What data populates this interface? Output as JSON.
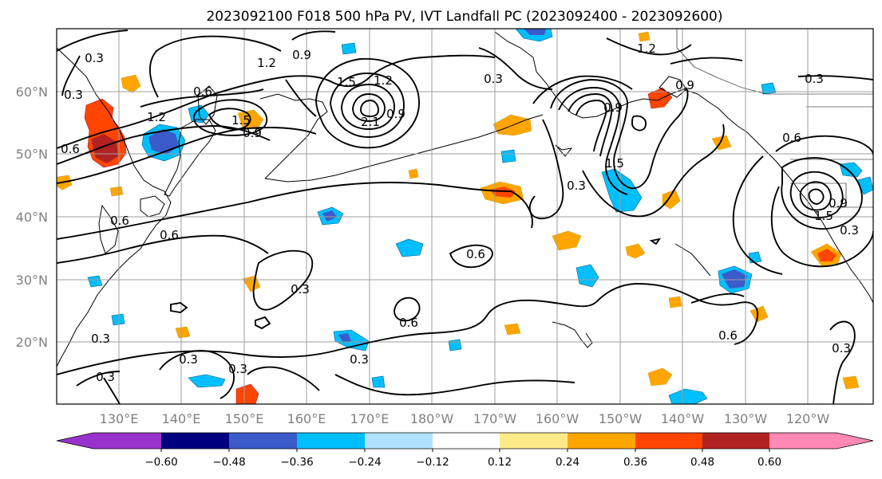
{
  "figure": {
    "title": "2023092100 F018 500 hPa PV, IVT Landfall PC (2023092400 - 2023092600)"
  },
  "map": {
    "lat_labels": [
      "60°N",
      "50°N",
      "40°N",
      "30°N",
      "20°N"
    ],
    "lon_labels": [
      "130°E",
      "140°E",
      "150°E",
      "160°E",
      "170°E",
      "180°W",
      "170°W",
      "160°W",
      "150°W",
      "140°W",
      "130°W",
      "120°W"
    ],
    "contour_labels": [
      "0.3",
      "0.3",
      "0.6",
      "1.2",
      "0.6",
      "1.2",
      "0.9",
      "1.5",
      "1.2",
      "1.5",
      "2.1",
      "0.9",
      "0.9",
      "0.3",
      "1.2",
      "0.9",
      "0.9",
      "0.3",
      "0.6",
      "0.6",
      "0.6",
      "0.3",
      "0.6",
      "0.6",
      "0.3",
      "0.3",
      "0.3",
      "0.3",
      "0.3",
      "0.6",
      "0.3",
      "1.5",
      "0.3",
      "0.3",
      "1.5",
      "0.9"
    ],
    "fill_levels": [
      "-0.60",
      "-0.48",
      "-0.36",
      "-0.24",
      "-0.12",
      "0.12",
      "0.24",
      "0.36",
      "0.48",
      "0.60"
    ]
  },
  "colorbar": {
    "ticks": [
      "−0.60",
      "−0.48",
      "−0.36",
      "−0.24",
      "−0.12",
      "0.12",
      "0.24",
      "0.36",
      "0.48",
      "0.60"
    ],
    "colors": [
      "#9932cc",
      "#000080",
      "#3a5bc9",
      "#00bfff",
      "#b0e2ff",
      "#ffffff",
      "#ffea8a",
      "#ffa500",
      "#ff4500",
      "#b22222",
      "#ff88b4"
    ]
  },
  "colors": {
    "neg_under": "#9932cc",
    "neg_strong": "#000080",
    "neg_mid": "#3a5bc9",
    "neg_light": "#00bfff",
    "neg_pale": "#b0e2ff",
    "pos_pale": "#ffea8a",
    "pos_light": "#ffa500",
    "pos_mid": "#ff4500",
    "pos_strong": "#b22222",
    "pos_over": "#ff88b4"
  }
}
